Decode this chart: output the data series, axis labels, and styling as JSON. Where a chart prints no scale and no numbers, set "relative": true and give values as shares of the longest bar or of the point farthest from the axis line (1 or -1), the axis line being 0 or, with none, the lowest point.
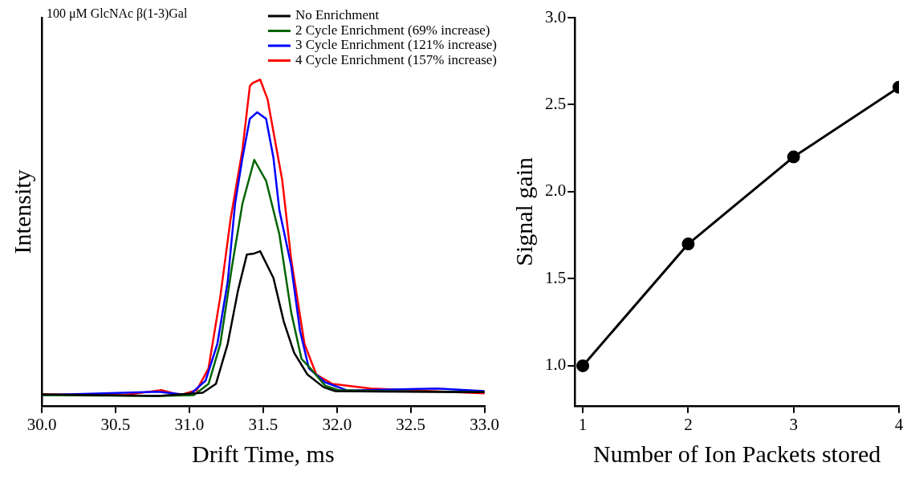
{
  "chart_data": [
    {
      "type": "line",
      "xlabel": "Drift Time, ms",
      "ylabel": "Intensity",
      "relative": true,
      "xlim": [
        30,
        33
      ],
      "xticks": [
        {
          "value": 30,
          "label": "30.0"
        },
        {
          "value": 30.5,
          "label": "30.5"
        },
        {
          "value": 31,
          "label": "31.0"
        },
        {
          "value": 31.5,
          "label": "31.5"
        },
        {
          "value": 32,
          "label": "32.0"
        },
        {
          "value": 32.5,
          "label": "32.5"
        },
        {
          "value": 33,
          "label": "33.0"
        }
      ],
      "legend": "top right",
      "grid": false,
      "marker": "none",
      "line_style": "solid",
      "annotations": [
        "100 μM GlcNAc β(1-3)Gal"
      ],
      "series": [
        {
          "name": "No Enrichment",
          "color": "#000000",
          "x": [
            30,
            30.79,
            31.09,
            31.18,
            31.26,
            31.33,
            31.39,
            31.44,
            31.48,
            31.57,
            31.64,
            31.71,
            31.8,
            31.91,
            31.99,
            32.29,
            33
          ],
          "values": [
            0.035,
            0.03,
            0.04,
            0.067,
            0.19,
            0.354,
            0.464,
            0.467,
            0.474,
            0.392,
            0.258,
            0.163,
            0.096,
            0.057,
            0.045,
            0.044,
            0.042
          ]
        },
        {
          "name": "2 Cycle Enrichment (69% increase)",
          "color": "#006400",
          "x": [
            30,
            30.79,
            31.03,
            31.13,
            31.21,
            31.29,
            31.36,
            31.44,
            31.52,
            31.61,
            31.69,
            31.76,
            31.82,
            31.92,
            32.01,
            32.29,
            33
          ],
          "values": [
            0.033,
            0.03,
            0.033,
            0.067,
            0.19,
            0.43,
            0.62,
            0.754,
            0.69,
            0.526,
            0.287,
            0.144,
            0.115,
            0.062,
            0.048,
            0.045,
            0.042
          ]
        },
        {
          "name": "3 Cycle Enrichment (121% increase)",
          "color": "#0000ff",
          "x": [
            30,
            30.79,
            31,
            31.11,
            31.19,
            31.26,
            31.31,
            31.36,
            31.41,
            31.46,
            31.52,
            31.57,
            31.61,
            31.69,
            31.75,
            31.81,
            31.92,
            32.07,
            32.68,
            33
          ],
          "values": [
            0.033,
            0.043,
            0.033,
            0.077,
            0.19,
            0.38,
            0.62,
            0.76,
            0.88,
            0.9,
            0.88,
            0.76,
            0.6,
            0.43,
            0.23,
            0.115,
            0.072,
            0.047,
            0.053,
            0.045
          ]
        },
        {
          "name": "4 Cycle Enrichment (157% increase)",
          "color": "#ff0000",
          "x": [
            30,
            30.56,
            30.81,
            30.94,
            31.05,
            31.13,
            31.21,
            31.28,
            31.36,
            31.41,
            31.43,
            31.48,
            31.53,
            31.57,
            31.63,
            31.69,
            31.78,
            31.86,
            31.97,
            32.23,
            33
          ],
          "values": [
            0.035,
            0.033,
            0.048,
            0.033,
            0.048,
            0.115,
            0.335,
            0.574,
            0.785,
            0.98,
            0.99,
            1,
            0.94,
            0.84,
            0.69,
            0.45,
            0.19,
            0.096,
            0.067,
            0.053,
            0.038
          ]
        }
      ]
    },
    {
      "type": "line",
      "xlabel": "Number of Ion Packets stored",
      "ylabel": "Signal gain",
      "xlim": [
        0.925,
        4
      ],
      "xticks": [
        1,
        2,
        3,
        4
      ],
      "ylim": [
        0.77,
        3.0
      ],
      "yticks": [
        {
          "value": 1,
          "label": "1.0"
        },
        {
          "value": 1.5,
          "label": "1.5"
        },
        {
          "value": 2,
          "label": "2.0"
        },
        {
          "value": 2.5,
          "label": "2.5"
        },
        {
          "value": 3,
          "label": "3.0"
        }
      ],
      "legend": false,
      "grid": false,
      "marker": "circle",
      "line_style": "solid",
      "series": [
        {
          "color": "#000000",
          "x": [
            1,
            2,
            3,
            4
          ],
          "values": [
            1.0,
            1.7,
            2.2,
            2.6
          ]
        }
      ]
    }
  ]
}
